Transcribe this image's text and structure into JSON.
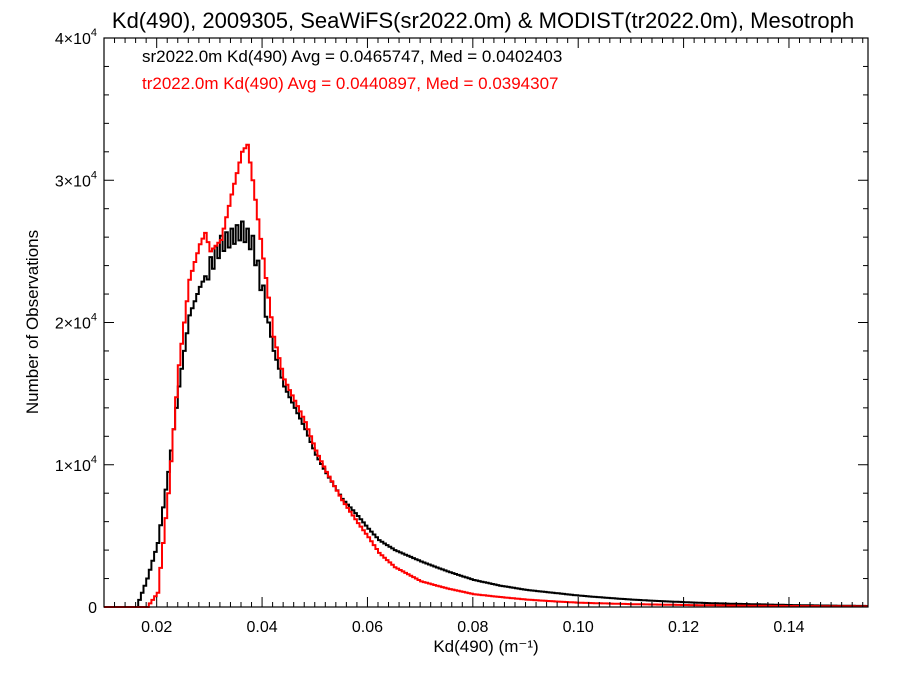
{
  "chart_data": {
    "type": "line",
    "title": "Kd(490), 2009305, SeaWiFS(sr2022.0m) & MODIST(tr2022.0m), Mesotroph",
    "xlabel": "Kd(490) (m⁻¹)",
    "ylabel": "Number of Observations",
    "xlim": [
      0.01,
      0.155
    ],
    "ylim": [
      0,
      40000
    ],
    "x_ticks": [
      0.02,
      0.04,
      0.06,
      0.08,
      0.1,
      0.12,
      0.14
    ],
    "x_tick_labels": [
      "0.02",
      "0.04",
      "0.06",
      "0.08",
      "0.10",
      "0.12",
      "0.14"
    ],
    "y_ticks": [
      0,
      10000,
      20000,
      30000,
      40000
    ],
    "y_tick_labels": [
      {
        "base": "0",
        "exp": ""
      },
      {
        "base": "1×10",
        "exp": "4"
      },
      {
        "base": "2×10",
        "exp": "4"
      },
      {
        "base": "3×10",
        "exp": "4"
      },
      {
        "base": "4×10",
        "exp": "4"
      }
    ],
    "grid": false,
    "legend": "top-left",
    "series": [
      {
        "name": "sr2022.0m Kd(490) Avg = 0.0465747, Med = 0.0402403",
        "color": "#000000",
        "step": true,
        "x": [
          0.01,
          0.016,
          0.018,
          0.02,
          0.022,
          0.024,
          0.026,
          0.028,
          0.03,
          0.032,
          0.034,
          0.036,
          0.038,
          0.04,
          0.042,
          0.044,
          0.046,
          0.048,
          0.05,
          0.052,
          0.055,
          0.058,
          0.06,
          0.062,
          0.065,
          0.07,
          0.075,
          0.08,
          0.085,
          0.09,
          0.095,
          0.1,
          0.105,
          0.11,
          0.115,
          0.12,
          0.125,
          0.13,
          0.135,
          0.14,
          0.145,
          0.15,
          0.155
        ],
        "y": [
          0,
          0,
          2000,
          4500,
          9500,
          15500,
          20500,
          22500,
          24000,
          25500,
          26000,
          26500,
          25500,
          22000,
          18000,
          15500,
          14000,
          12500,
          10700,
          9400,
          7600,
          6400,
          5500,
          4700,
          4000,
          3200,
          2500,
          1900,
          1500,
          1200,
          1000,
          800,
          650,
          520,
          420,
          340,
          270,
          220,
          180,
          140,
          110,
          90,
          70
        ]
      },
      {
        "name": "tr2022.0m Kd(490) Avg = 0.0440897, Med = 0.0394307",
        "color": "#ff0000",
        "step": true,
        "x": [
          0.01,
          0.018,
          0.02,
          0.022,
          0.024,
          0.026,
          0.028,
          0.029,
          0.03,
          0.032,
          0.034,
          0.036,
          0.037,
          0.038,
          0.04,
          0.042,
          0.044,
          0.046,
          0.048,
          0.05,
          0.052,
          0.055,
          0.058,
          0.06,
          0.062,
          0.065,
          0.07,
          0.075,
          0.08,
          0.085,
          0.09,
          0.095,
          0.1,
          0.11,
          0.12,
          0.13,
          0.14,
          0.155
        ],
        "y": [
          0,
          0,
          1000,
          8000,
          17000,
          23000,
          25500,
          26300,
          25000,
          25800,
          29000,
          32000,
          32500,
          30000,
          24500,
          19000,
          16000,
          14500,
          13000,
          11000,
          9500,
          7500,
          5900,
          4900,
          3800,
          2800,
          1800,
          1300,
          900,
          700,
          520,
          400,
          300,
          200,
          140,
          100,
          70,
          40
        ]
      }
    ]
  }
}
